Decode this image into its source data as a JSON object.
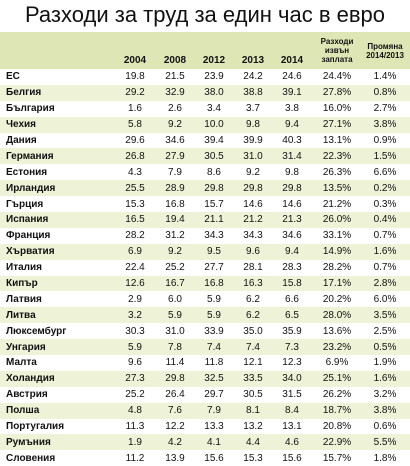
{
  "title": "Разходи за труд за един час в евро",
  "table": {
    "header": [
      "2004",
      "2008",
      "2012",
      "2013",
      "2014",
      "Разходи извън заплата",
      "Промяна 2014/2013"
    ],
    "rows": [
      [
        "ЕС",
        "19.8",
        "21.5",
        "23.9",
        "24.2",
        "24.6",
        "24.4%",
        "1.4%"
      ],
      [
        "Белгия",
        "29.2",
        "32.9",
        "38.0",
        "38.8",
        "39.1",
        "27.8%",
        "0.8%"
      ],
      [
        "България",
        "1.6",
        "2.6",
        "3.4",
        "3.7",
        "3.8",
        "16.0%",
        "2.7%"
      ],
      [
        "Чехия",
        "5.8",
        "9.2",
        "10.0",
        "9.8",
        "9.4",
        "27.1%",
        "3.8%"
      ],
      [
        "Дания",
        "29.6",
        "34.6",
        "39.4",
        "39.9",
        "40.3",
        "13.1%",
        "0.9%"
      ],
      [
        "Германия",
        "26.8",
        "27.9",
        "30.5",
        "31.0",
        "31.4",
        "22.3%",
        "1.5%"
      ],
      [
        "Естония",
        "4.3",
        "7.9",
        "8.6",
        "9.2",
        "9.8",
        "26.3%",
        "6.6%"
      ],
      [
        "Ирландия",
        "25.5",
        "28.9",
        "29.8",
        "29.8",
        "29.8",
        "13.5%",
        "0.2%"
      ],
      [
        "Гърция",
        "15.3",
        "16.8",
        "15.7",
        "14.6",
        "14.6",
        "21.2%",
        "0.3%"
      ],
      [
        "Испания",
        "16.5",
        "19.4",
        "21.1",
        "21.2",
        "21.3",
        "26.0%",
        "0.4%"
      ],
      [
        "Франция",
        "28.2",
        "31.2",
        "34.3",
        "34.3",
        "34.6",
        "33.1%",
        "0.7%"
      ],
      [
        "Хърватия",
        "6.9",
        "9.2",
        "9.5",
        "9.6",
        "9.4",
        "14.9%",
        "1.6%"
      ],
      [
        "Италия",
        "22.4",
        "25.2",
        "27.7",
        "28.1",
        "28.3",
        "28.2%",
        "0.7%"
      ],
      [
        "Кипър",
        "12.6",
        "16.7",
        "16.8",
        "16.3",
        "15.8",
        "17.1%",
        "2.8%"
      ],
      [
        "Латвия",
        "2.9",
        "6.0",
        "5.9",
        "6.2",
        "6.6",
        "20.2%",
        "6.0%"
      ],
      [
        "Литва",
        "3.2",
        "5.9",
        "5.9",
        "6.2",
        "6.5",
        "28.0%",
        "3.5%"
      ],
      [
        "Люксембург",
        "30.3",
        "31.0",
        "33.9",
        "35.0",
        "35.9",
        "13.6%",
        "2.5%"
      ],
      [
        "Унгария",
        "5.9",
        "7.8",
        "7.4",
        "7.4",
        "7.3",
        "23.2%",
        "0.5%"
      ],
      [
        "Малта",
        "9.6",
        "11.4",
        "11.8",
        "12.1",
        "12.3",
        "6.9%",
        "1.9%"
      ],
      [
        "Холандия",
        "27.3",
        "29.8",
        "32.5",
        "33.5",
        "34.0",
        "25.1%",
        "1.6%"
      ],
      [
        "Австрия",
        "25.2",
        "26.4",
        "29.7",
        "30.5",
        "31.5",
        "26.2%",
        "3.2%"
      ],
      [
        "Полша",
        "4.8",
        "7.6",
        "7.9",
        "8.1",
        "8.4",
        "18.7%",
        "3.8%"
      ],
      [
        "Португалия",
        "11.3",
        "12.2",
        "13.3",
        "13.2",
        "13.1",
        "20.8%",
        "0.6%"
      ],
      [
        "Румъния",
        "1.9",
        "4.2",
        "4.1",
        "4.4",
        "4.6",
        "22.9%",
        "5.5%"
      ],
      [
        "Словения",
        "11.2",
        "13.9",
        "15.6",
        "15.3",
        "15.6",
        "15.7%",
        "1.8%"
      ]
    ]
  }
}
